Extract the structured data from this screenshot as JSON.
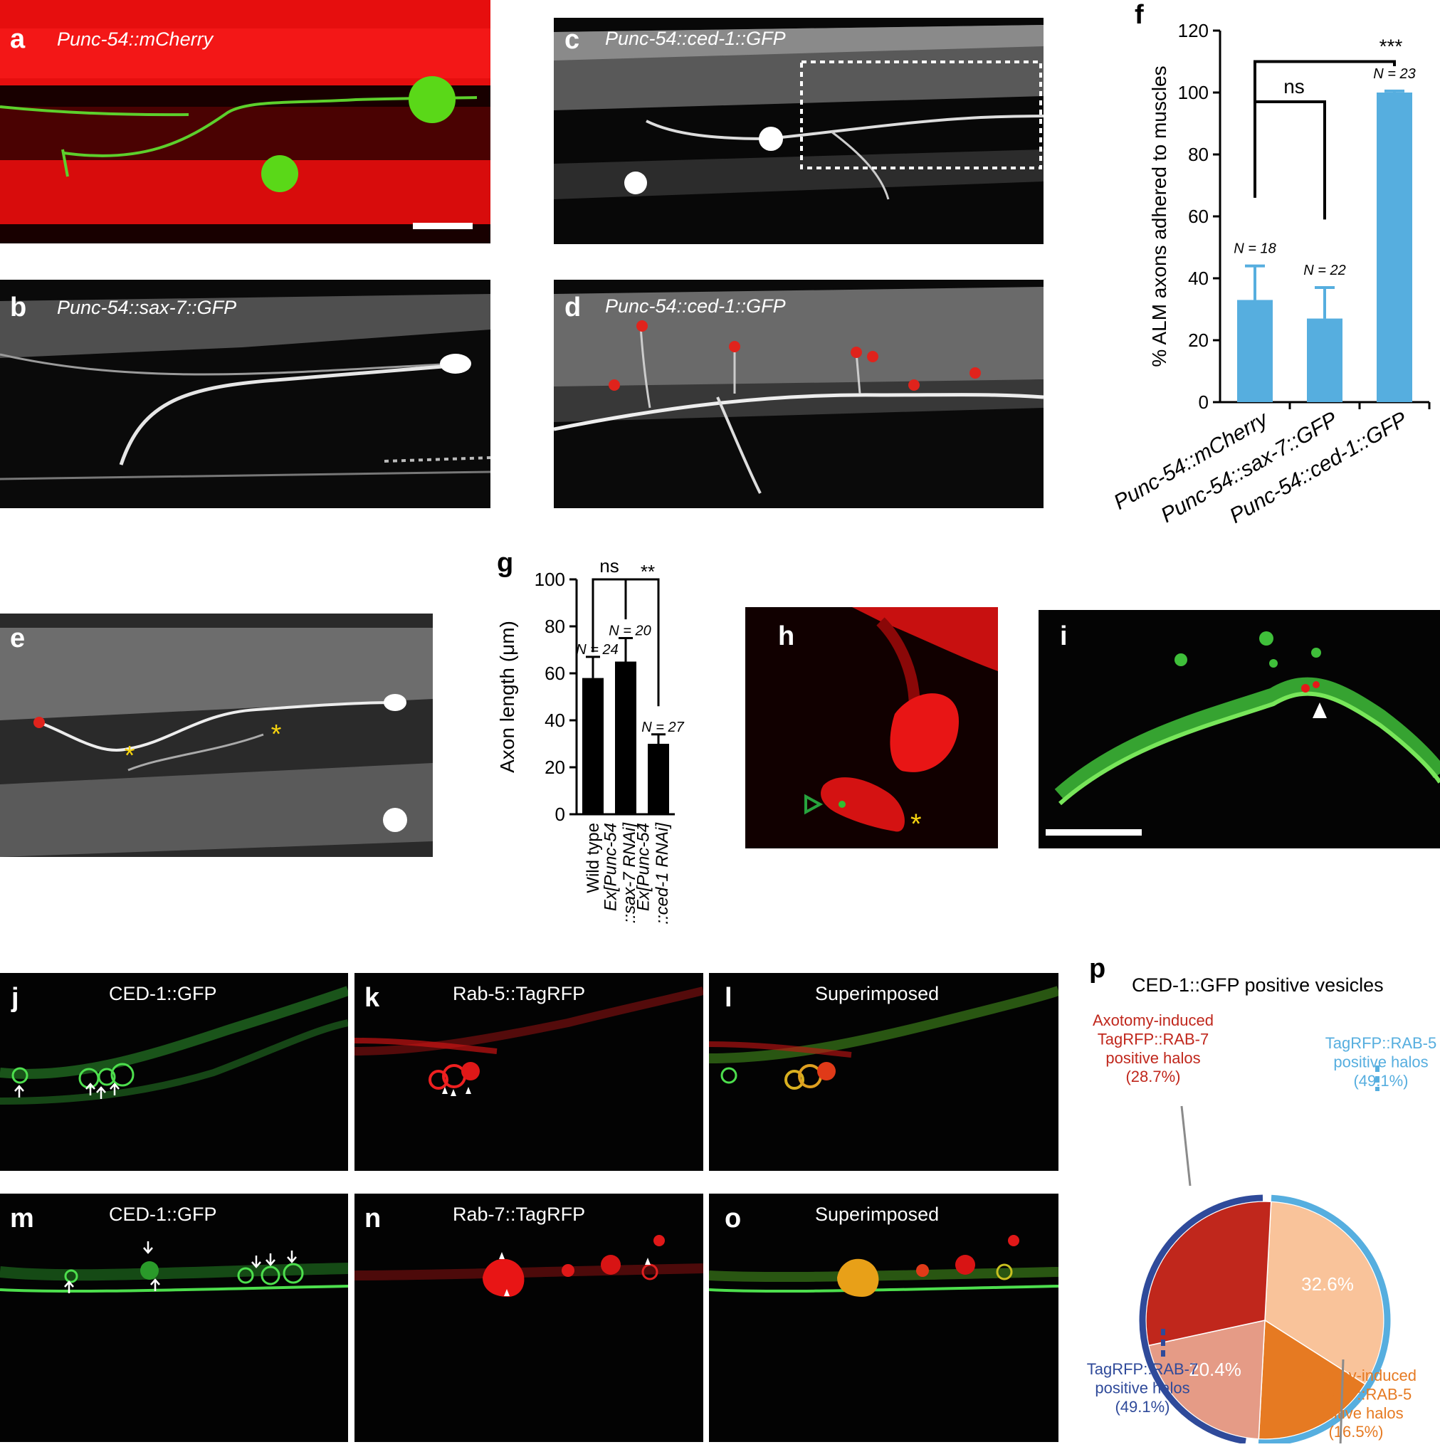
{
  "panels": {
    "a": {
      "label": "a",
      "title": "Punc-54::mCherry"
    },
    "b": {
      "label": "b",
      "title": "Punc-54::sax-7::GFP"
    },
    "c": {
      "label": "c",
      "title": "Punc-54::ced-1::GFP"
    },
    "d": {
      "label": "d",
      "title": "Punc-54::ced-1::GFP"
    },
    "e": {
      "label": "e"
    },
    "h": {
      "label": "h"
    },
    "i": {
      "label": "i"
    },
    "j": {
      "label": "j",
      "title": "CED-1::GFP"
    },
    "k": {
      "label": "k",
      "title": "Rab-5::TagRFP"
    },
    "l": {
      "label": "l",
      "title": "Superimposed"
    },
    "m": {
      "label": "m",
      "title": "CED-1::GFP"
    },
    "n": {
      "label": "n",
      "title": "Rab-7::TagRFP"
    },
    "o": {
      "label": "o",
      "title": "Superimposed"
    }
  },
  "chart_f": {
    "label": "f",
    "ylabel": "% ALM axons adhered to muscles",
    "significance": [
      "ns",
      "***"
    ],
    "color": "#56aedf"
  },
  "chart_g": {
    "label": "g",
    "ylabel": "Axon length (μm)",
    "significance": [
      "ns",
      "**"
    ],
    "color": "#000000"
  },
  "pie_p": {
    "label": "p",
    "title": "CED-1::GFP positive vesicles",
    "slice_labels": [
      "32.6%",
      "20.4%"
    ],
    "callouts": [
      {
        "lines": [
          "Axotomy-induced",
          "TagRFP::RAB-7",
          "positive halos",
          "(28.7%)"
        ],
        "color": "#c0271c"
      },
      {
        "lines": [
          "TagRFP::RAB-5",
          "positive halos",
          "(49.1%)"
        ],
        "color": "#56aedf"
      },
      {
        "lines": [
          "TagRFP::RAB-7",
          "positive halos",
          "(49.1%)"
        ],
        "color": "#2f4a9a"
      },
      {
        "lines": [
          "Axotomy-induced",
          "TagRFP::RAB-5",
          "positive halos",
          "(16.5%)"
        ],
        "color": "#e67a22"
      }
    ]
  },
  "chart_data": [
    {
      "type": "bar",
      "categories": [
        "Punc-54::mCherry",
        "Punc-54::sax-7::GFP",
        "Punc-54::ced-1::GFP"
      ],
      "values": [
        33,
        27,
        100
      ],
      "errors": [
        11,
        10,
        0.5
      ],
      "n_labels": [
        "N = 18",
        "N = 22",
        "N = 23"
      ],
      "ylabel": "% ALM axons adhered to muscles",
      "ylim": [
        0,
        120
      ],
      "yticks": [
        0,
        20,
        40,
        60,
        80,
        100,
        120
      ]
    },
    {
      "type": "bar",
      "categories": [
        "Wild type",
        "Ex[Punc-54 ::sax-7 RNAi]",
        "Ex[Punc-54 ::ced-1 RNAi]"
      ],
      "values": [
        58,
        65,
        30
      ],
      "errors": [
        9,
        10,
        4
      ],
      "n_labels": [
        "N = 24",
        "N = 20",
        "N = 27"
      ],
      "ylabel": "Axon length (μm)",
      "ylim": [
        0,
        100
      ],
      "yticks": [
        0,
        20,
        40,
        60,
        80,
        100
      ]
    },
    {
      "type": "pie",
      "title": "CED-1::GFP positive vesicles",
      "slices": [
        {
          "label": "32.6%",
          "value": 32.6,
          "color": "#f9c39a"
        },
        {
          "label": "16.5%",
          "value": 16.5,
          "color": "#e67a22"
        },
        {
          "label": "20.4%",
          "value": 20.4,
          "color": "#e59b86"
        },
        {
          "label": "28.7%",
          "value": 28.7,
          "color": "#c0271c"
        }
      ]
    }
  ]
}
